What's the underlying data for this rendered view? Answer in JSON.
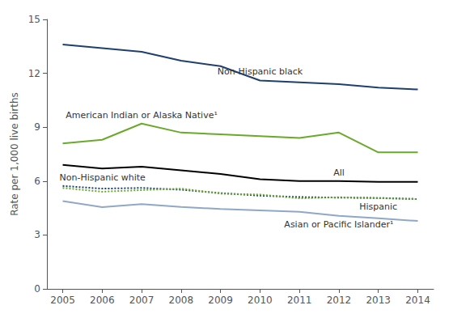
{
  "chart_data": {
    "type": "line",
    "x": [
      2005,
      2006,
      2007,
      2008,
      2009,
      2010,
      2011,
      2012,
      2013,
      2014
    ],
    "series": [
      {
        "name": "Non-Hispanic black",
        "color": "#1f3f6e",
        "line_style": "solid",
        "values": [
          13.6,
          13.4,
          13.2,
          12.7,
          12.4,
          11.6,
          11.5,
          11.4,
          11.2,
          11.1
        ]
      },
      {
        "name": "American Indian or Alaska Native¹",
        "color": "#6aaa2a",
        "line_style": "solid",
        "values": [
          8.1,
          8.3,
          9.2,
          8.7,
          8.6,
          8.5,
          8.4,
          8.7,
          7.6,
          7.6
        ]
      },
      {
        "name": "All",
        "color": "#000000",
        "line_style": "solid",
        "values": [
          6.9,
          6.7,
          6.8,
          6.6,
          6.4,
          6.1,
          6.0,
          6.0,
          5.96,
          5.96
        ]
      },
      {
        "name": "Non-Hispanic white",
        "color": "#1f3f6e",
        "line_style": "dotted",
        "values": [
          5.73,
          5.58,
          5.62,
          5.52,
          5.33,
          5.19,
          5.11,
          5.08,
          5.06,
          5.0
        ]
      },
      {
        "name": "Hispanic",
        "color": "#6aaa2a",
        "line_style": "dotted",
        "values": [
          5.62,
          5.41,
          5.5,
          5.58,
          5.3,
          5.25,
          5.04,
          5.1,
          5.05,
          5.0
        ]
      },
      {
        "name": "Asian or Pacific Islander¹",
        "color": "#8fa8c8",
        "line_style": "solid",
        "values": [
          4.89,
          4.55,
          4.72,
          4.56,
          4.45,
          4.37,
          4.29,
          4.07,
          3.93,
          3.78
        ]
      }
    ],
    "ylabel": "Rate per 1,000 live births",
    "xlim": [
      2004.6,
      2014.4
    ],
    "xticks": [
      2005,
      2006,
      2007,
      2008,
      2009,
      2010,
      2011,
      2012,
      2013,
      2014
    ],
    "ylim": [
      0,
      15
    ],
    "yticks": [
      0,
      3,
      6,
      9,
      12,
      15
    ],
    "grid": false
  }
}
